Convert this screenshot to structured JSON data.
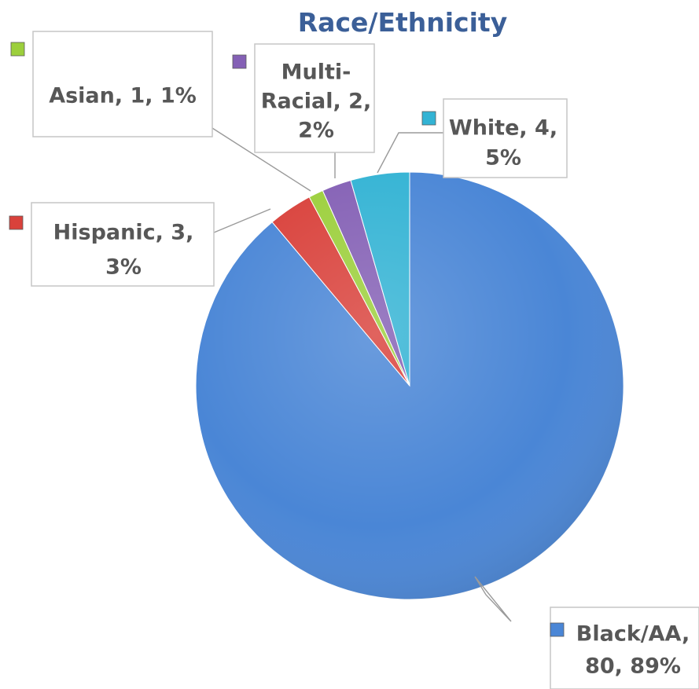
{
  "chart_data": {
    "type": "pie",
    "title": "Race/Ethnicity",
    "slices": [
      {
        "category": "Black/AA",
        "value": 80,
        "percent": "89%",
        "color": "#4a86d6",
        "label_lines": [
          "Black/AA,",
          "80, 89%"
        ]
      },
      {
        "category": "Hispanic",
        "value": 3,
        "percent": "3%",
        "color": "#d9413b",
        "label_lines": [
          "Hispanic, 3,",
          "3%"
        ]
      },
      {
        "category": "Asian",
        "value": 1,
        "percent": "1%",
        "color": "#9ccf3c",
        "label_lines": [
          "Asian, 1, 1%"
        ]
      },
      {
        "category": "Multi-Racial",
        "value": 2,
        "percent": "2%",
        "color": "#8460b5",
        "label_lines": [
          "Multi-",
          "Racial, 2,",
          "2%"
        ]
      },
      {
        "category": "White",
        "value": 4,
        "percent": "5%",
        "color": "#33b3d4",
        "label_lines": [
          "White, 4,",
          "5%"
        ]
      }
    ]
  }
}
